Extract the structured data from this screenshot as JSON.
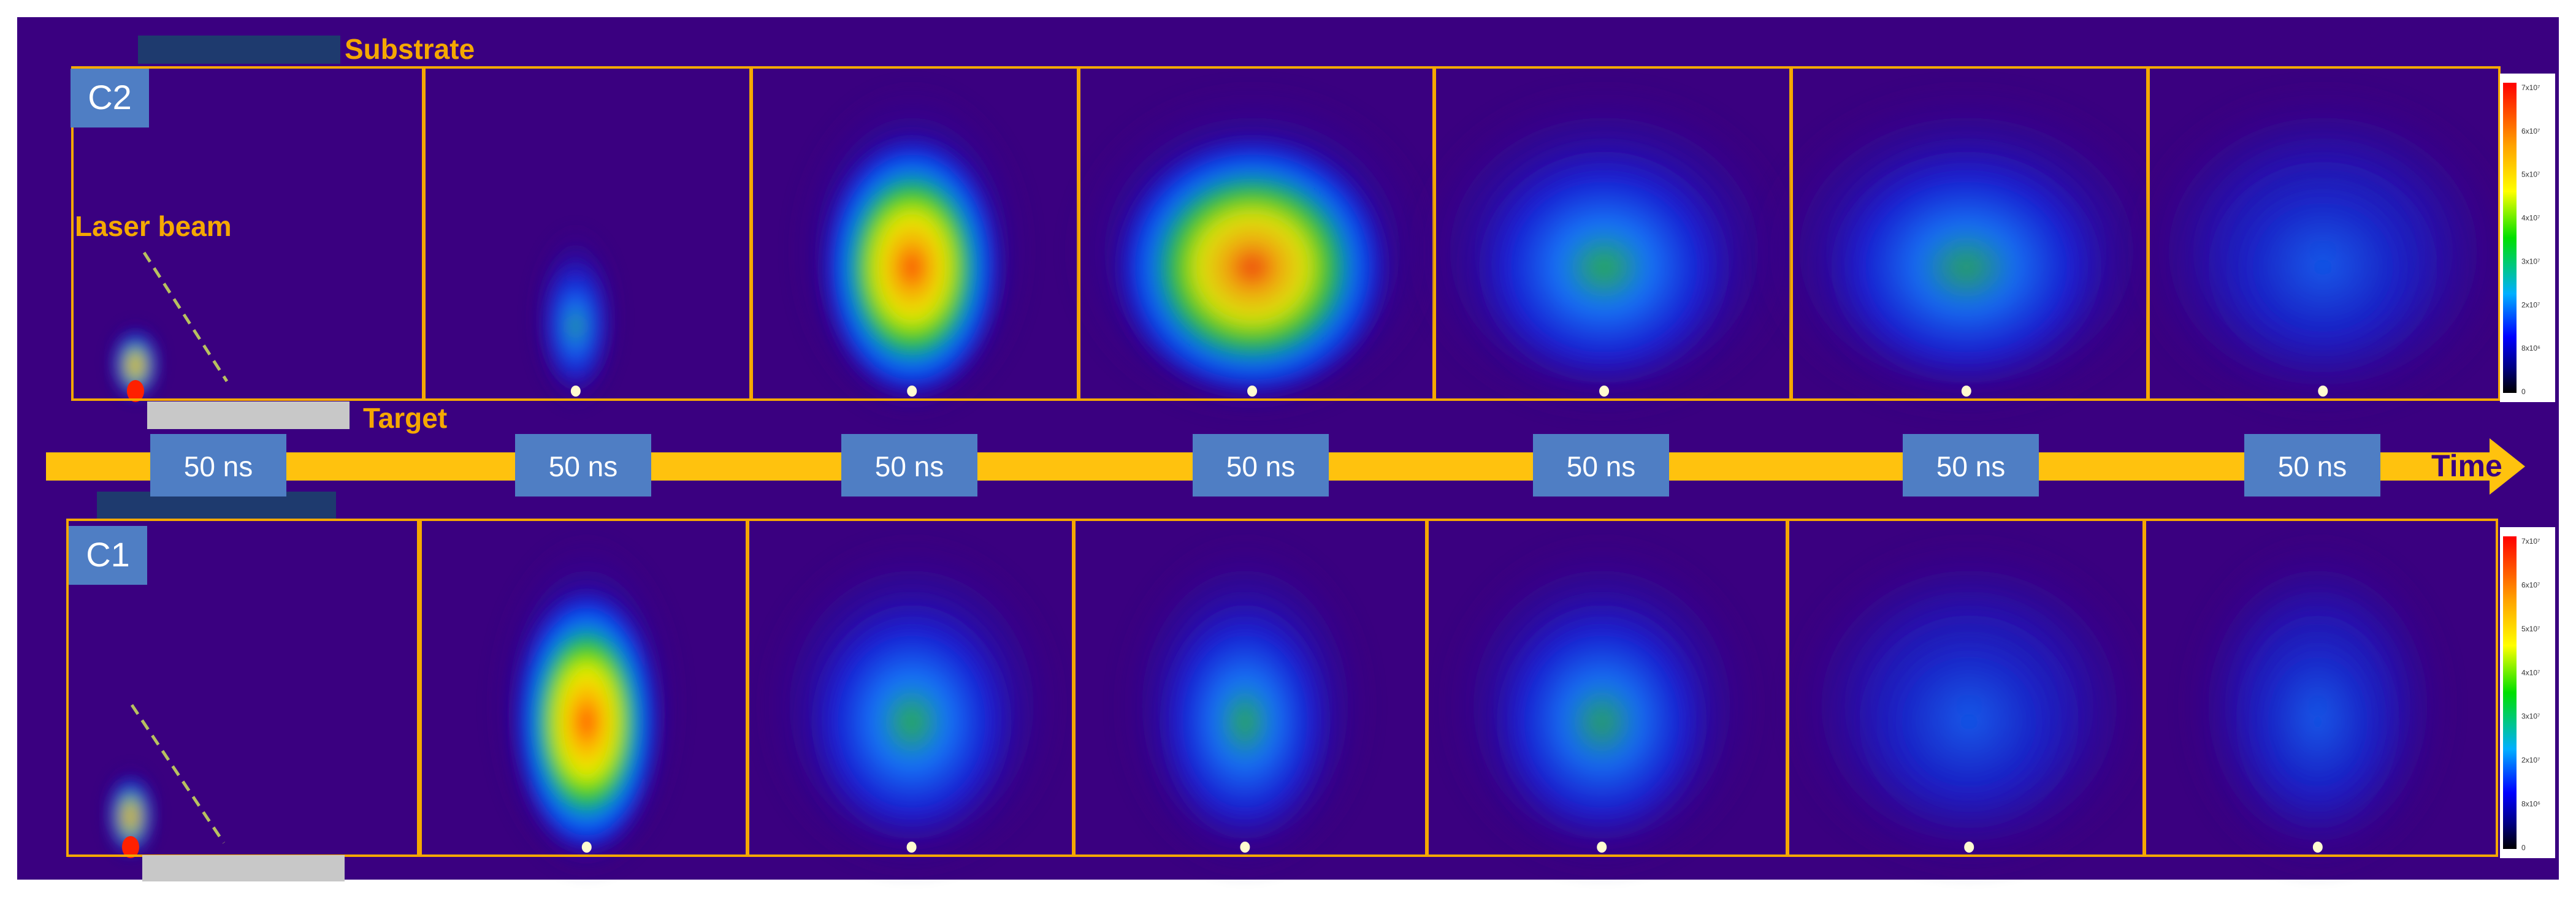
{
  "labels": {
    "substrate": "Substrate",
    "target": "Target",
    "laser_beam": "Laser beam",
    "time": "Time",
    "row_top": "C2",
    "row_bottom": "C1",
    "interval": "50 ns"
  },
  "colorbar": {
    "ticks_top": [
      "7x10⁷",
      "6x10⁷",
      "5x10⁷",
      "4x10⁷",
      "3x10⁷",
      "2x10⁷",
      "8x10⁶",
      "0"
    ],
    "ticks_bottom": [
      "7x10⁷",
      "6x10⁷",
      "5x10⁷",
      "4x10⁷",
      "3x10⁷",
      "2x10⁷",
      "8x10⁶",
      "0"
    ],
    "colormap": [
      "#ff0000",
      "#ffff00",
      "#00ff00",
      "#00c8ff",
      "#0000ff",
      "#000080",
      "#000000"
    ]
  },
  "plume_intensity": {
    "row_top": [
      0.85,
      0.55,
      0.95,
      0.85,
      0.65,
      0.45,
      0.35
    ],
    "row_bottom": [
      0.75,
      1.0,
      0.7,
      0.6,
      0.45,
      0.3,
      0.2
    ]
  },
  "colors": {
    "frame": "#f5a800",
    "arrow": "#ffc20e",
    "label_text": "#f5a800",
    "badge_bg": "#4f7ec4",
    "badge_text": "#ffffff",
    "background": "#3a0080",
    "time_text": "#3a0080"
  }
}
